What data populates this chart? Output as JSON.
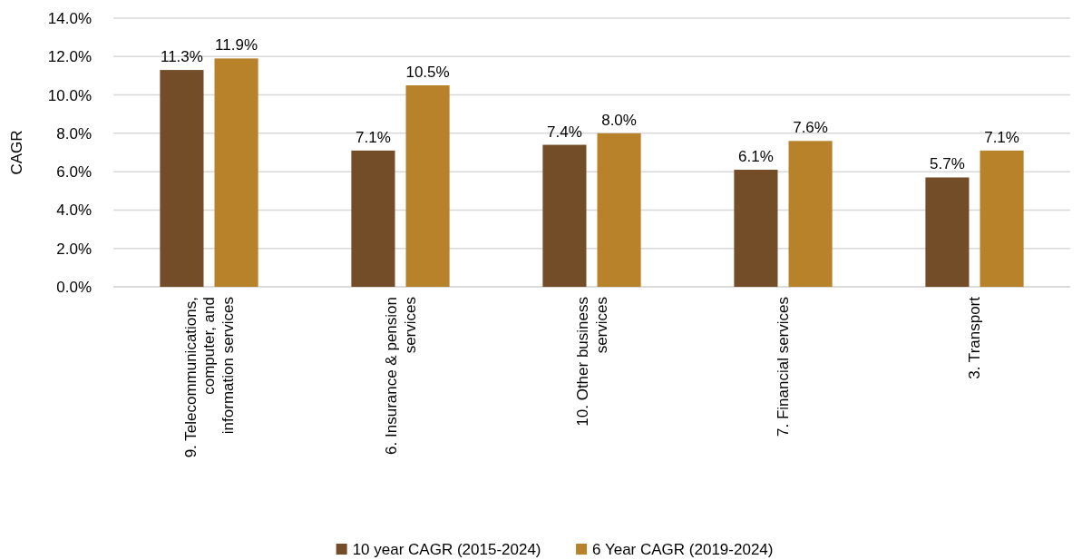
{
  "chart_data": {
    "type": "bar",
    "categories": [
      "9. Telecommunications, computer, and information services",
      "6. Insurance & pension services",
      "10. Other business services",
      "7. Financial services",
      "3. Transport"
    ],
    "series": [
      {
        "name": "10 year CAGR (2015-2024)",
        "color": "#734c28",
        "values": [
          11.3,
          7.1,
          7.4,
          6.1,
          5.7
        ],
        "value_labels": [
          "11.3%",
          "7.1%",
          "7.4%",
          "6.1%",
          "5.7%"
        ]
      },
      {
        "name": "6 Year CAGR (2019-2024)",
        "color": "#b8822a",
        "values": [
          11.9,
          10.5,
          8.0,
          7.6,
          7.1
        ],
        "value_labels": [
          "11.9%",
          "10.5%",
          "8.0%",
          "7.6%",
          "7.1%"
        ]
      }
    ],
    "ylabel": "CAGR",
    "ylim": [
      0,
      14
    ],
    "yticks": [
      {
        "value": 0,
        "label": "0.0%"
      },
      {
        "value": 2,
        "label": "2.0%"
      },
      {
        "value": 4,
        "label": "4.0%"
      },
      {
        "value": 6,
        "label": "6.0%"
      },
      {
        "value": 8,
        "label": "8.0%"
      },
      {
        "value": 10,
        "label": "10.0%"
      },
      {
        "value": 12,
        "label": "12.0%"
      },
      {
        "value": 14,
        "label": "14.0%"
      }
    ],
    "grid": "y",
    "legend": "bottom"
  }
}
